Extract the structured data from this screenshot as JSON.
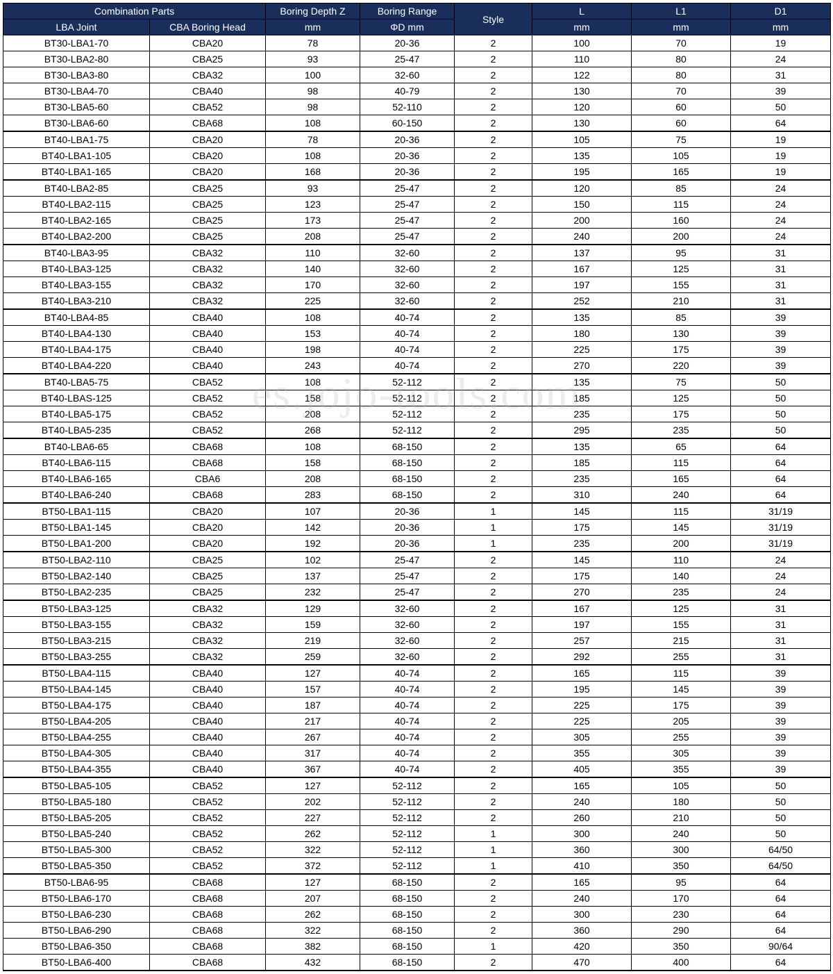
{
  "watermark": "es.jojo-tools.com",
  "headers": {
    "combo": "Combination Parts",
    "lba": "LBA Joint",
    "cba": "CBA Boring Head",
    "depth": "Boring Depth Z",
    "range": "Boring Range",
    "mm": "mm",
    "phid": "ΦD mm",
    "style": "Style",
    "L": "L",
    "L1": "L1",
    "D1": "D1"
  },
  "colors": {
    "header_bg": "#1a2e5c",
    "header_fg": "#ffffff",
    "border": "#000000",
    "bg": "#ffffff"
  },
  "rows": [
    [
      "BT30-LBA1-70",
      "CBA20",
      "78",
      "20-36",
      "2",
      "100",
      "70",
      "19",
      0
    ],
    [
      "BT30-LBA2-80",
      "CBA25",
      "93",
      "25-47",
      "2",
      "110",
      "80",
      "24",
      0
    ],
    [
      "BT30-LBA3-80",
      "CBA32",
      "100",
      "32-60",
      "2",
      "122",
      "80",
      "31",
      0
    ],
    [
      "BT30-LBA4-70",
      "CBA40",
      "98",
      "40-79",
      "2",
      "130",
      "70",
      "39",
      0
    ],
    [
      "BT30-LBA5-60",
      "CBA52",
      "98",
      "52-110",
      "2",
      "120",
      "60",
      "50",
      0
    ],
    [
      "BT30-LBA6-60",
      "CBA68",
      "108",
      "60-150",
      "2",
      "130",
      "60",
      "64",
      1
    ],
    [
      "BT40-LBA1-75",
      "CBA20",
      "78",
      "20-36",
      "2",
      "105",
      "75",
      "19",
      0
    ],
    [
      "BT40-LBA1-105",
      "CBA20",
      "108",
      "20-36",
      "2",
      "135",
      "105",
      "19",
      0
    ],
    [
      "BT40-LBA1-165",
      "CBA20",
      "168",
      "20-36",
      "2",
      "195",
      "165",
      "19",
      1
    ],
    [
      "BT40-LBA2-85",
      "CBA25",
      "93",
      "25-47",
      "2",
      "120",
      "85",
      "24",
      0
    ],
    [
      "BT40-LBA2-115",
      "CBA25",
      "123",
      "25-47",
      "2",
      "150",
      "115",
      "24",
      0
    ],
    [
      "BT40-LBA2-165",
      "CBA25",
      "173",
      "25-47",
      "2",
      "200",
      "160",
      "24",
      0
    ],
    [
      "BT40-LBA2-200",
      "CBA25",
      "208",
      "25-47",
      "2",
      "240",
      "200",
      "24",
      1
    ],
    [
      "BT40-LBA3-95",
      "CBA32",
      "110",
      "32-60",
      "2",
      "137",
      "95",
      "31",
      0
    ],
    [
      "BT40-LBA3-125",
      "CBA32",
      "140",
      "32-60",
      "2",
      "167",
      "125",
      "31",
      0
    ],
    [
      "BT40-LBA3-155",
      "CBA32",
      "170",
      "32-60",
      "2",
      "197",
      "155",
      "31",
      0
    ],
    [
      "BT40-LBA3-210",
      "CBA32",
      "225",
      "32-60",
      "2",
      "252",
      "210",
      "31",
      1
    ],
    [
      "BT40-LBA4-85",
      "CBA40",
      "108",
      "40-74",
      "2",
      "135",
      "85",
      "39",
      0
    ],
    [
      "BT40-LBA4-130",
      "CBA40",
      "153",
      "40-74",
      "2",
      "180",
      "130",
      "39",
      0
    ],
    [
      "BT40-LBA4-175",
      "CBA40",
      "198",
      "40-74",
      "2",
      "225",
      "175",
      "39",
      0
    ],
    [
      "BT40-LBA4-220",
      "CBA40",
      "243",
      "40-74",
      "2",
      "270",
      "220",
      "39",
      1
    ],
    [
      "BT40-LBA5-75",
      "CBA52",
      "108",
      "52-112",
      "2",
      "135",
      "75",
      "50",
      0
    ],
    [
      "BT40-LBAS-125",
      "CBA52",
      "158",
      "52-112",
      "2",
      "185",
      "125",
      "50",
      0
    ],
    [
      "BT40-LBA5-175",
      "CBA52",
      "208",
      "52-112",
      "2",
      "235",
      "175",
      "50",
      0
    ],
    [
      "BT40-LBA5-235",
      "CBA52",
      "268",
      "52-112",
      "2",
      "295",
      "235",
      "50",
      1
    ],
    [
      "BT40-LBA6-65",
      "CBA68",
      "108",
      "68-150",
      "2",
      "135",
      "65",
      "64",
      0
    ],
    [
      "BT40-LBA6-115",
      "CBA68",
      "158",
      "68-150",
      "2",
      "185",
      "115",
      "64",
      0
    ],
    [
      "BT40-LBA6-165",
      "CBA6",
      "208",
      "68-150",
      "2",
      "235",
      "165",
      "64",
      0
    ],
    [
      "BT40-LBA6-240",
      "CBA68",
      "283",
      "68-150",
      "2",
      "310",
      "240",
      "64",
      1
    ],
    [
      "BT50-LBA1-115",
      "CBA20",
      "107",
      "20-36",
      "1",
      "145",
      "115",
      "31/19",
      0
    ],
    [
      "BT50-LBA1-145",
      "CBA20",
      "142",
      "20-36",
      "1",
      "175",
      "145",
      "31/19",
      0
    ],
    [
      "BT50-LBA1-200",
      "CBA20",
      "192",
      "20-36",
      "1",
      "235",
      "200",
      "31/19",
      1
    ],
    [
      "BT50-LBA2-110",
      "CBA25",
      "102",
      "25-47",
      "2",
      "145",
      "110",
      "24",
      0
    ],
    [
      "BT50-LBA2-140",
      "CBA25",
      "137",
      "25-47",
      "2",
      "175",
      "140",
      "24",
      0
    ],
    [
      "BT50-LBA2-235",
      "CBA25",
      "232",
      "25-47",
      "2",
      "270",
      "235",
      "24",
      1
    ],
    [
      "BT50-LBA3-125",
      "CBA32",
      "129",
      "32-60",
      "2",
      "167",
      "125",
      "31",
      0
    ],
    [
      "BT50-LBA3-155",
      "CBA32",
      "159",
      "32-60",
      "2",
      "197",
      "155",
      "31",
      0
    ],
    [
      "BT50-LBA3-215",
      "CBA32",
      "219",
      "32-60",
      "2",
      "257",
      "215",
      "31",
      0
    ],
    [
      "BT50-LBA3-255",
      "CBA32",
      "259",
      "32-60",
      "2",
      "292",
      "255",
      "31",
      1
    ],
    [
      "BT50-LBA4-115",
      "CBA40",
      "127",
      "40-74",
      "2",
      "165",
      "115",
      "39",
      0
    ],
    [
      "BT50-LBA4-145",
      "CBA40",
      "157",
      "40-74",
      "2",
      "195",
      "145",
      "39",
      0
    ],
    [
      "BT50-LBA4-175",
      "CBA40",
      "187",
      "40-74",
      "2",
      "225",
      "175",
      "39",
      0
    ],
    [
      "BT50-LBA4-205",
      "CBA40",
      "217",
      "40-74",
      "2",
      "225",
      "205",
      "39",
      0
    ],
    [
      "BT50-LBA4-255",
      "CBA40",
      "267",
      "40-74",
      "2",
      "305",
      "255",
      "39",
      0
    ],
    [
      "BT50-LBA4-305",
      "CBA40",
      "317",
      "40-74",
      "2",
      "355",
      "305",
      "39",
      0
    ],
    [
      "BT50-LBA4-355",
      "CBA40",
      "367",
      "40-74",
      "2",
      "405",
      "355",
      "39",
      1
    ],
    [
      "BT50-LBA5-105",
      "CBA52",
      "127",
      "52-112",
      "2",
      "165",
      "105",
      "50",
      0
    ],
    [
      "BT50-LBA5-180",
      "CBA52",
      "202",
      "52-112",
      "2",
      "240",
      "180",
      "50",
      0
    ],
    [
      "BT50-LBA5-205",
      "CBA52",
      "227",
      "52-112",
      "2",
      "260",
      "210",
      "50",
      0
    ],
    [
      "BT50-LBA5-240",
      "CBA52",
      "262",
      "52-112",
      "1",
      "300",
      "240",
      "50",
      0
    ],
    [
      "BT50-LBA5-300",
      "CBA52",
      "322",
      "52-112",
      "1",
      "360",
      "300",
      "64/50",
      0
    ],
    [
      "BT50-LBA5-350",
      "CBA52",
      "372",
      "52-112",
      "1",
      "410",
      "350",
      "64/50",
      1
    ],
    [
      "BT50-LBA6-95",
      "CBA68",
      "127",
      "68-150",
      "2",
      "165",
      "95",
      "64",
      0
    ],
    [
      "BT50-LBA6-170",
      "CBA68",
      "207",
      "68-150",
      "2",
      "240",
      "170",
      "64",
      0
    ],
    [
      "BT50-LBA6-230",
      "CBA68",
      "262",
      "68-150",
      "2",
      "300",
      "230",
      "64",
      0
    ],
    [
      "BT50-LBA6-290",
      "CBA68",
      "322",
      "68-150",
      "2",
      "360",
      "290",
      "64",
      0
    ],
    [
      "BT50-LBA6-350",
      "CBA68",
      "382",
      "68-150",
      "1",
      "420",
      "350",
      "90/64",
      0
    ],
    [
      "BT50-LBA6-400",
      "CBA68",
      "432",
      "68-150",
      "2",
      "470",
      "400",
      "64",
      1
    ]
  ]
}
